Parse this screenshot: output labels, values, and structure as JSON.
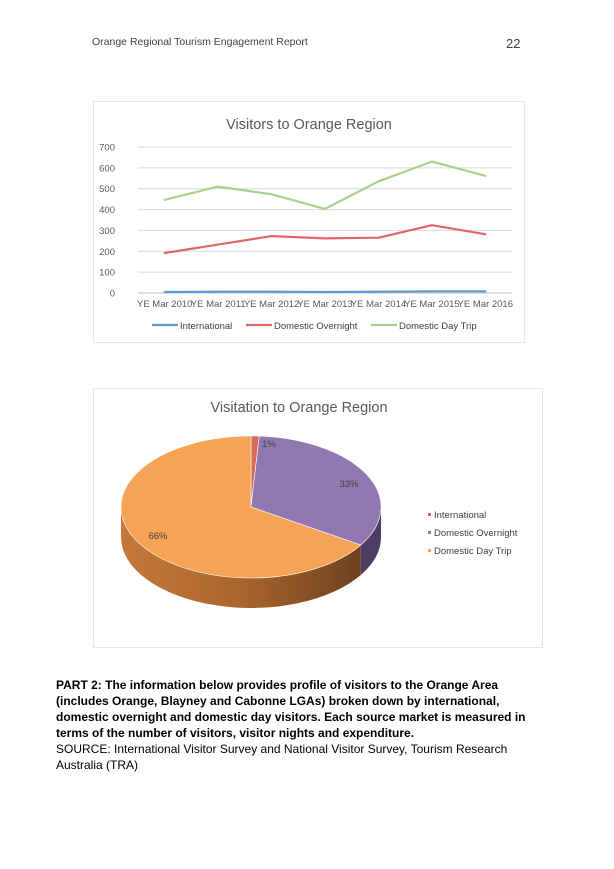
{
  "header": {
    "title": "Orange Regional Tourism Engagement Report",
    "page_number": "22"
  },
  "chart_data": [
    {
      "type": "line",
      "title": "Visitors to Orange Region",
      "categories": [
        "YE Mar 2010",
        "YE Mar 2011",
        "YE Mar 2012",
        "YE Mar 2013",
        "YE Mar 2014",
        "YE Mar 2015",
        "YE Mar 2016"
      ],
      "series": [
        {
          "name": "International",
          "values": [
            5,
            6,
            6,
            5,
            6,
            8,
            8
          ],
          "color": "#5b9bd5"
        },
        {
          "name": "Domestic Overnight",
          "values": [
            192,
            232,
            273,
            262,
            265,
            325,
            282
          ],
          "color": "#e06666"
        },
        {
          "name": "Domestic Day Trip",
          "values": [
            447,
            510,
            473,
            403,
            535,
            630,
            562
          ],
          "color": "#a9d18e"
        }
      ],
      "y_ticks": [
        "0",
        "100",
        "200",
        "300",
        "400",
        "500",
        "600",
        "700"
      ],
      "ylim": [
        0,
        700
      ],
      "grid": true,
      "legend": "bottom"
    },
    {
      "type": "pie",
      "title": "Visitation to Orange Region",
      "slices": [
        {
          "name": "International",
          "value": 1,
          "label": "1%",
          "color": "#d96a5a",
          "side": "#8f3c30"
        },
        {
          "name": "Domestic Overnight",
          "value": 33,
          "label": "33%",
          "color": "#9278b0",
          "side": "#4e3d62"
        },
        {
          "name": "Domestic Day Trip",
          "value": 66,
          "label": "66%",
          "color": "#f4a454",
          "side": "#a0612a"
        }
      ],
      "legend": "right"
    }
  ],
  "part2": {
    "bold_text": "PART 2: The information below provides profile of visitors to the Orange Area (includes Orange, Blayney and Cabonne LGAs) broken down by international, domestic overnight and domestic day visitors. Each source market is measured in terms of the number of visitors, visitor nights and expenditure.",
    "source_text": "SOURCE: International Visitor Survey and National Visitor Survey, Tourism Research Australia (TRA)"
  }
}
